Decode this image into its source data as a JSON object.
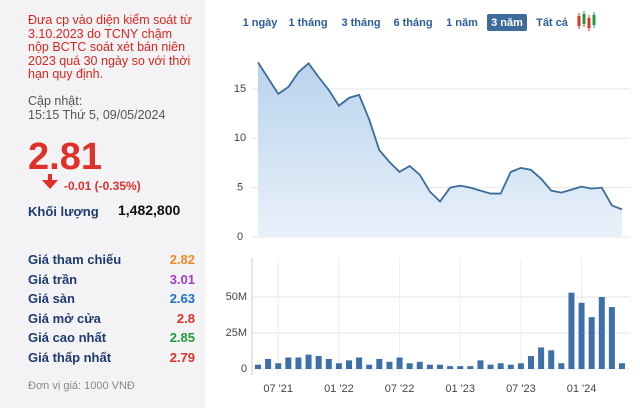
{
  "info": {
    "warning": [
      "Đưa cp vào diện kiểm soát từ",
      "3.10.2023 do TCNY chậm",
      "nộp BCTC soát xét bán niên",
      "2023 quá 30 ngày so với thời",
      "hạn quy định."
    ],
    "updated_label": "Cập nhật:",
    "updated_time": "15:15 Thứ 5, 09/05/2024",
    "price": "2.81",
    "change": "-0.01 (-0.35%)",
    "volume_label": "Khối lượng",
    "volume": "1,482,800",
    "stats": [
      {
        "label": "Giá tham chiếu",
        "value": "2.82",
        "color": "#f08a24"
      },
      {
        "label": "Giá trần",
        "value": "3.01",
        "color": "#a23ec2"
      },
      {
        "label": "Giá sàn",
        "value": "2.63",
        "color": "#1e6fc8"
      },
      {
        "label": "Giá mở cửa",
        "value": "2.8",
        "color": "#e0302a"
      },
      {
        "label": "Giá cao nhất",
        "value": "2.85",
        "color": "#1f9a3c"
      },
      {
        "label": "Giá thấp nhất",
        "value": "2.79",
        "color": "#e0302a"
      }
    ],
    "unit": "Đơn vị giá: 1000 VNĐ"
  },
  "tabs": {
    "items": [
      "1 ngày",
      "1 tháng",
      "3 tháng",
      "6 tháng",
      "1 năm",
      "3 năm",
      "Tất cả"
    ],
    "selected": 5
  },
  "chart_data": [
    {
      "type": "line",
      "color": "#3a6d9a",
      "ylim": [
        0,
        19
      ],
      "yticks": [
        0,
        5,
        10,
        15
      ],
      "grid": true,
      "values": [
        17.7,
        16.1,
        14.5,
        15.2,
        16.7,
        17.6,
        16.2,
        14.9,
        13.3,
        14.1,
        14.4,
        11.9,
        8.8,
        7.6,
        6.6,
        7.2,
        6.3,
        4.6,
        3.6,
        5.0,
        5.2,
        5.0,
        4.7,
        4.4,
        4.4,
        6.6,
        7.0,
        6.8,
        5.9,
        4.7,
        4.5,
        4.8,
        5.1,
        4.9,
        5.0,
        3.2,
        2.8
      ]
    },
    {
      "type": "bar",
      "color": "#3d6fa8",
      "ylim": [
        0,
        75000000
      ],
      "yticks": [
        0,
        {
          "value": 25000000,
          "label": "25M"
        },
        {
          "value": 50000000,
          "label": "50M"
        }
      ],
      "grid": true,
      "categories": [
        null,
        null,
        "07 '21",
        null,
        null,
        null,
        null,
        null,
        "01 '22",
        null,
        null,
        null,
        null,
        null,
        "07 '22",
        null,
        null,
        null,
        null,
        null,
        "01 '23",
        null,
        null,
        null,
        null,
        null,
        "07 '23",
        null,
        null,
        null,
        null,
        null,
        "01 '24",
        null,
        null,
        null,
        null
      ],
      "values": [
        3000000,
        7000000,
        4000000,
        8000000,
        8000000,
        10000000,
        9000000,
        7000000,
        4000000,
        6000000,
        8000000,
        3000000,
        7000000,
        5000000,
        8000000,
        4000000,
        5000000,
        3000000,
        3000000,
        2000000,
        2000000,
        2000000,
        6000000,
        3000000,
        4000000,
        3000000,
        4000000,
        9000000,
        15000000,
        13000000,
        4000000,
        53000000,
        46000000,
        36000000,
        50000000,
        43000000,
        4000000
      ]
    }
  ]
}
